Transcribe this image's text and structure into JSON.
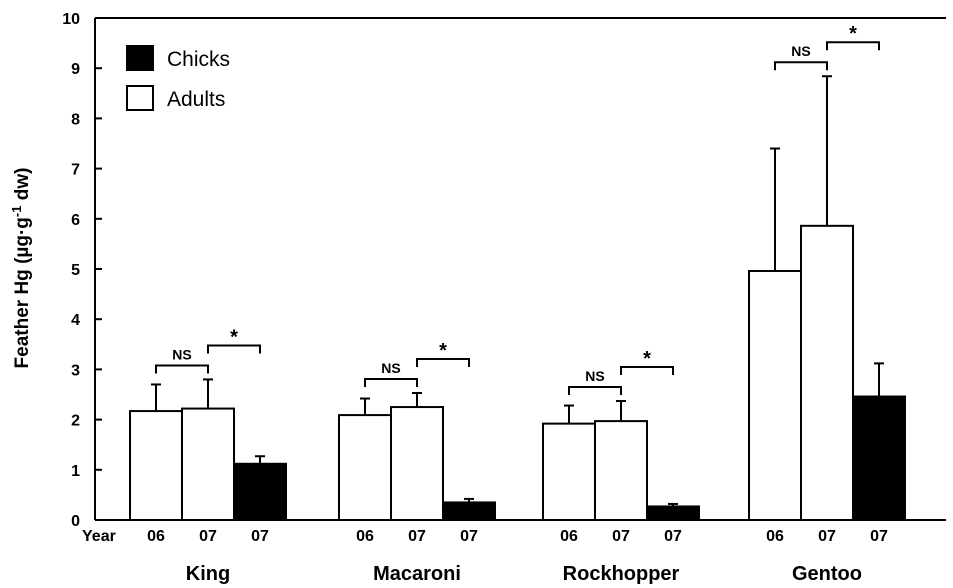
{
  "chart_data": {
    "type": "bar",
    "ylabel_main": "Feather Hg (µg·g",
    "ylabel_sup": "-1",
    "ylabel_tail": " dw)",
    "ylim": [
      0,
      10
    ],
    "yticks": [
      "0",
      "1",
      "2",
      "3",
      "4",
      "5",
      "6",
      "7",
      "8",
      "9",
      "10"
    ],
    "year_axis_label": "Year",
    "legend": {
      "position": "top-left",
      "items": [
        {
          "label": "Chicks",
          "color": "#000000"
        },
        {
          "label": "Adults",
          "color": "#ffffff"
        }
      ]
    },
    "groups": [
      {
        "species": "King",
        "bars": [
          {
            "year": "06",
            "age": "Adults",
            "value": 2.17,
            "error": 0.53
          },
          {
            "year": "07",
            "age": "Adults",
            "value": 2.22,
            "error": 0.58
          },
          {
            "year": "07",
            "age": "Chicks",
            "value": 1.12,
            "error": 0.15
          }
        ],
        "comparisons": [
          {
            "from": 0,
            "to": 1,
            "label": "NS"
          },
          {
            "from": 1,
            "to": 2,
            "label": "*"
          }
        ]
      },
      {
        "species": "Macaroni",
        "bars": [
          {
            "year": "06",
            "age": "Adults",
            "value": 2.09,
            "error": 0.33
          },
          {
            "year": "07",
            "age": "Adults",
            "value": 2.25,
            "error": 0.28
          },
          {
            "year": "07",
            "age": "Chicks",
            "value": 0.35,
            "error": 0.07
          }
        ],
        "comparisons": [
          {
            "from": 0,
            "to": 1,
            "label": "NS"
          },
          {
            "from": 1,
            "to": 2,
            "label": "*"
          }
        ]
      },
      {
        "species": "Rockhopper",
        "bars": [
          {
            "year": "06",
            "age": "Adults",
            "value": 1.92,
            "error": 0.36
          },
          {
            "year": "07",
            "age": "Adults",
            "value": 1.97,
            "error": 0.4
          },
          {
            "year": "07",
            "age": "Chicks",
            "value": 0.27,
            "error": 0.05
          }
        ],
        "comparisons": [
          {
            "from": 0,
            "to": 1,
            "label": "NS"
          },
          {
            "from": 1,
            "to": 2,
            "label": "*"
          }
        ]
      },
      {
        "species": "Gentoo",
        "bars": [
          {
            "year": "06",
            "age": "Adults",
            "value": 4.96,
            "error": 2.44
          },
          {
            "year": "07",
            "age": "Adults",
            "value": 5.86,
            "error": 2.98
          },
          {
            "year": "07",
            "age": "Chicks",
            "value": 2.46,
            "error": 0.66
          }
        ],
        "comparisons": [
          {
            "from": 0,
            "to": 1,
            "label": "NS"
          },
          {
            "from": 1,
            "to": 2,
            "label": "*"
          }
        ]
      }
    ]
  }
}
